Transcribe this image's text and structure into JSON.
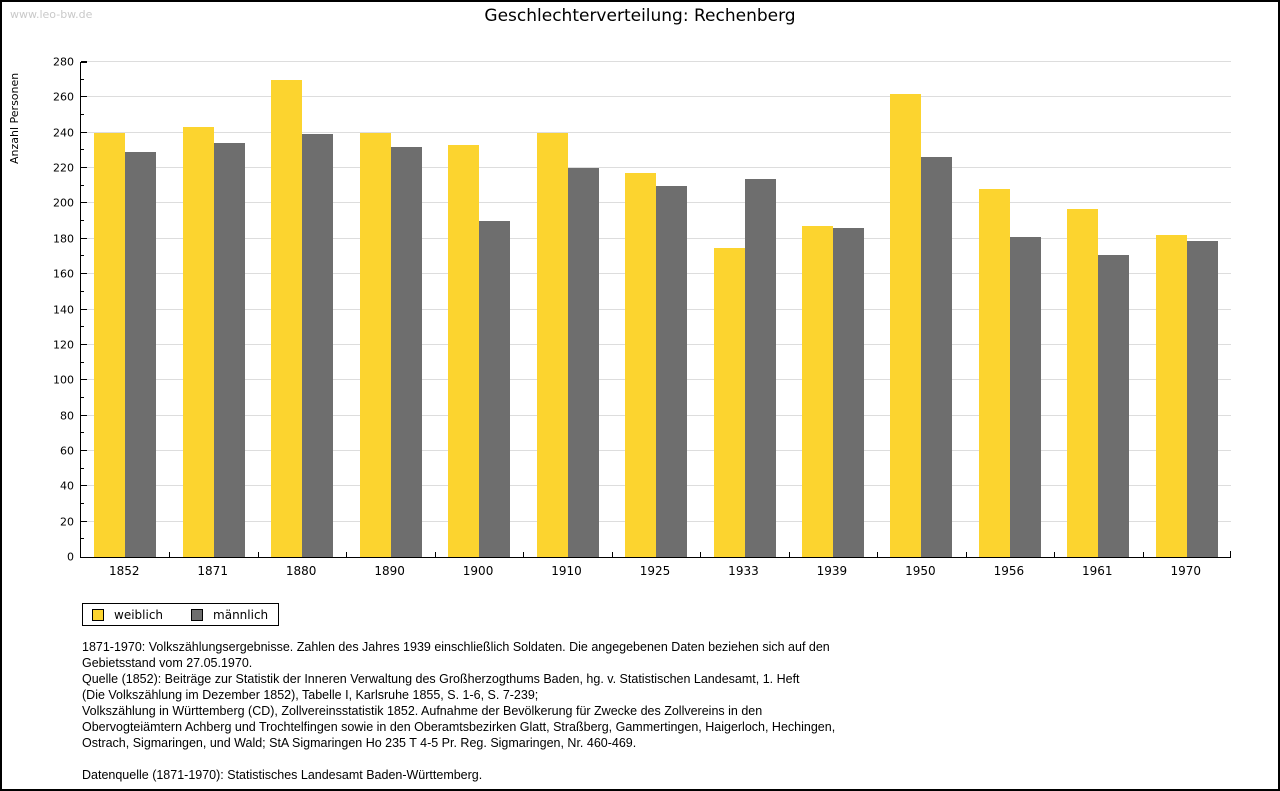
{
  "page": {
    "watermark": "www.leo-bw.de",
    "title": "Geschlechterverteilung: Rechenberg"
  },
  "chart_data": {
    "type": "bar",
    "title": "Geschlechterverteilung: Rechenberg",
    "xlabel": "",
    "ylabel": "Anzahl Personen",
    "ylim": [
      0,
      280
    ],
    "ytick_major_step": 20,
    "ytick_minor_step": 10,
    "grid": true,
    "legend_position": "bottom-left",
    "categories": [
      "1852",
      "1871",
      "1880",
      "1890",
      "1900",
      "1910",
      "1925",
      "1933",
      "1939",
      "1950",
      "1956",
      "1961",
      "1970"
    ],
    "series": [
      {
        "name": "weiblich",
        "color": "#FCD42F",
        "values": [
          240,
          243,
          270,
          240,
          233,
          240,
          217,
          175,
          187,
          262,
          208,
          197,
          182
        ]
      },
      {
        "name": "männlich",
        "color": "#6E6E6E",
        "values": [
          229,
          234,
          239,
          232,
          190,
          220,
          210,
          214,
          186,
          226,
          181,
          171,
          179
        ]
      }
    ]
  },
  "legend": {
    "items": [
      {
        "label": "weiblich",
        "color": "#FCD42F"
      },
      {
        "label": "männlich",
        "color": "#6E6E6E"
      }
    ]
  },
  "footer": {
    "lines": [
      "1871-1970: Volkszählungsergebnisse. Zahlen des Jahres 1939 einschließlich Soldaten. Die angegebenen Daten beziehen sich auf den",
      "Gebietsstand vom 27.05.1970.",
      "Quelle (1852): Beiträge zur Statistik der Inneren Verwaltung des Großherzogthums Baden, hg. v. Statistischen Landesamt, 1. Heft",
      "(Die Volkszählung im Dezember 1852), Tabelle I, Karlsruhe 1855, S. 1-6, S. 7-239;",
      "Volkszählung in Württemberg (CD), Zollvereinsstatistik 1852. Aufnahme der Bevölkerung für Zwecke des Zollvereins in den",
      "Obervogteiämtern Achberg und Trochtelfingen sowie in den Oberamtsbezirken Glatt, Straßberg, Gammertingen, Haigerloch, Hechingen,",
      "Ostrach, Sigmaringen, und Wald; StA Sigmaringen Ho 235 T 4-5 Pr. Reg. Sigmaringen, Nr. 460-469.",
      "",
      "Datenquelle (1871-1970): Statistisches Landesamt Baden-Württemberg."
    ]
  },
  "colors": {
    "gridline": "#DDDDDD",
    "axis": "#000000",
    "watermark": "#C9C9C9"
  }
}
